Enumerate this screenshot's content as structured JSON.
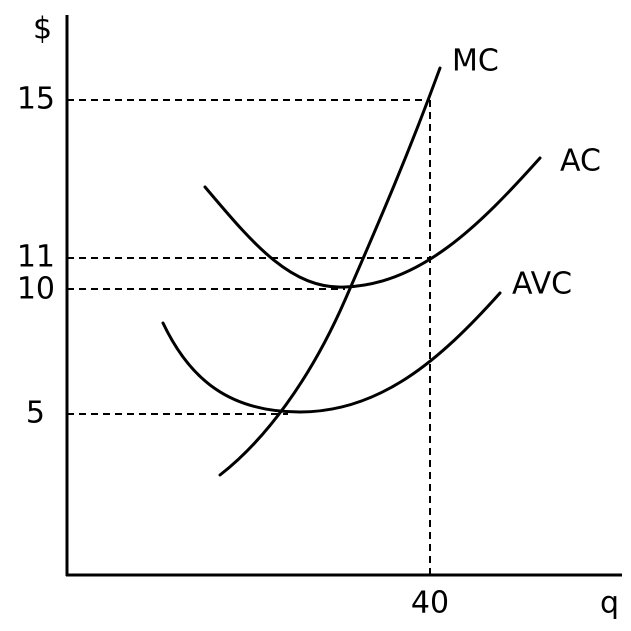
{
  "axes": {
    "y_label": "$",
    "x_label": "q"
  },
  "y_levels": [
    "15",
    "11",
    "10",
    "5"
  ],
  "x_levels": [
    "40"
  ],
  "curves": [
    "MC",
    "AC",
    "AVC"
  ]
}
